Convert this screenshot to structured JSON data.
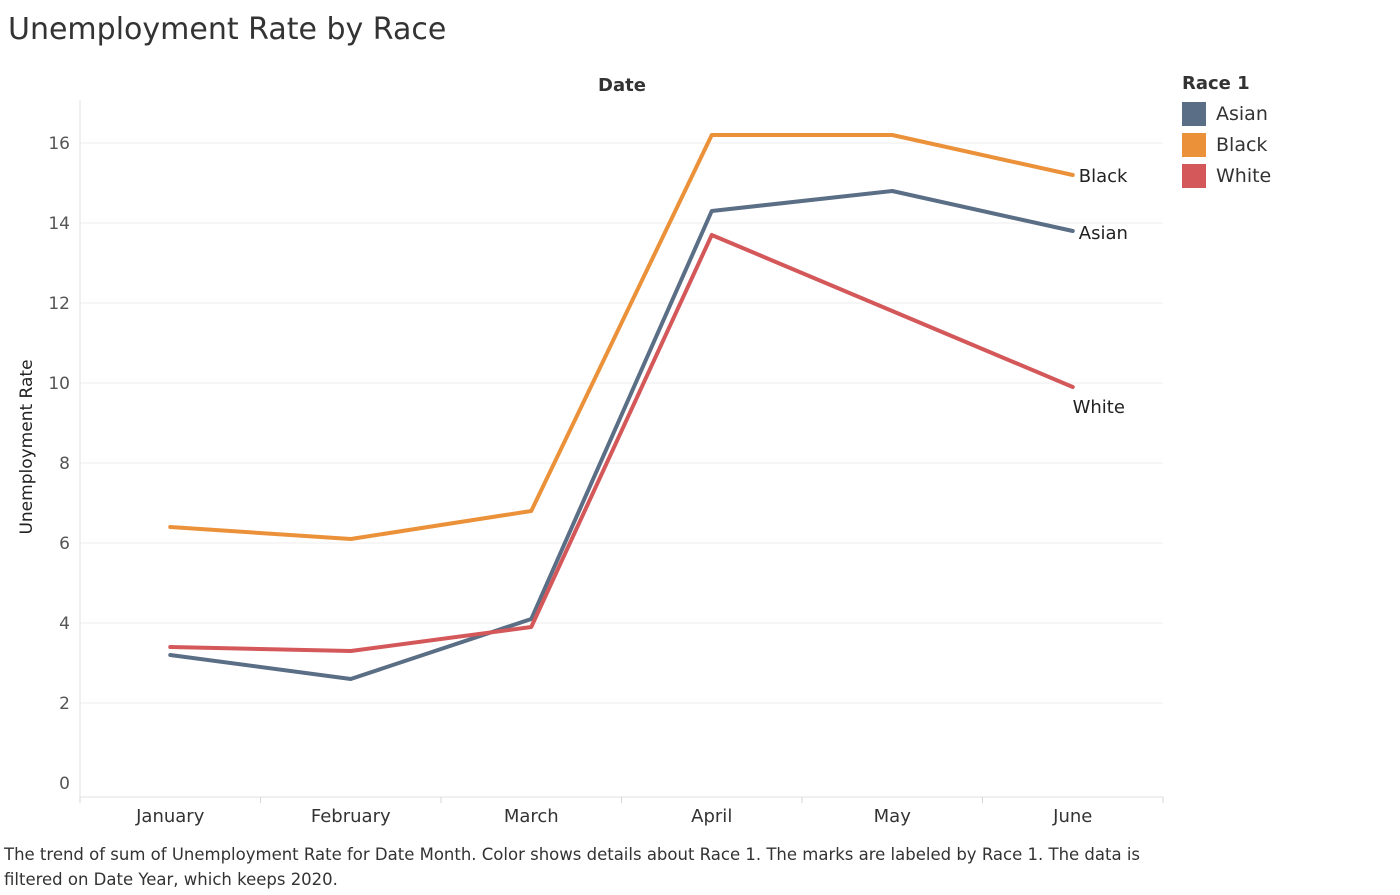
{
  "chart_data": {
    "type": "line",
    "title": "Unemployment Rate by Race",
    "top_header": "Date",
    "xlabel": "",
    "ylabel": "Unemployment Rate",
    "categories": [
      "January",
      "February",
      "March",
      "April",
      "May",
      "June"
    ],
    "ylim": [
      0,
      17
    ],
    "yticks": [
      0,
      2,
      4,
      6,
      8,
      10,
      12,
      14,
      16
    ],
    "grid": true,
    "legend": {
      "title": "Race 1",
      "placement": "right"
    },
    "series": [
      {
        "name": "Asian",
        "color": "#5a6e86",
        "values": [
          3.2,
          2.6,
          4.1,
          14.3,
          14.8,
          13.8
        ]
      },
      {
        "name": "Black",
        "color": "#eb913a",
        "values": [
          6.4,
          6.1,
          6.8,
          16.2,
          16.2,
          15.2
        ]
      },
      {
        "name": "White",
        "color": "#d4585a",
        "values": [
          3.4,
          3.3,
          3.9,
          13.7,
          11.8,
          9.9
        ]
      }
    ],
    "end_labels": [
      "Asian",
      "Black",
      "White"
    ]
  },
  "caption": "The trend of sum of Unemployment Rate for Date Month.  Color shows details about Race 1.  The marks are labeled by Race 1. The data is filtered on Date Year, which keeps 2020."
}
